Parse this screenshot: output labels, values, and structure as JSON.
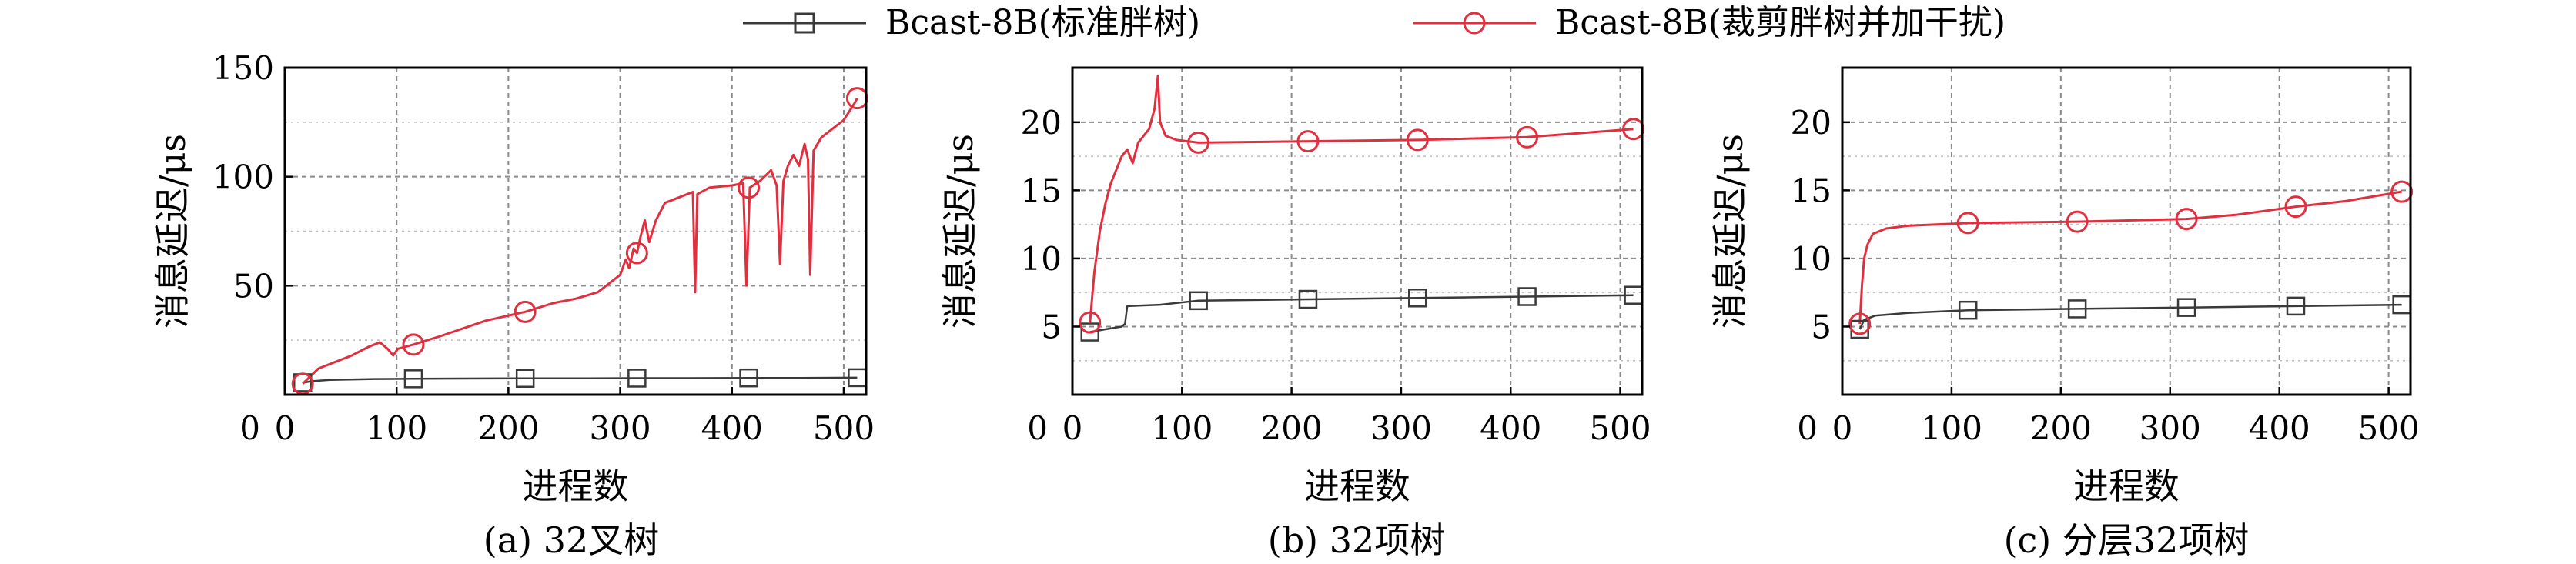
{
  "legend": [
    {
      "label": "Bcast-8B(标准胖树)",
      "color": "#3a3a3a",
      "marker": "square"
    },
    {
      "label": "Bcast-8B(裁剪胖树并加干扰)",
      "color": "#e0303f",
      "marker": "circle"
    }
  ],
  "chart_data": [
    {
      "type": "line",
      "caption": "(a)  32叉树",
      "xlabel": "进程数",
      "ylabel": "消息延迟/μs",
      "xlim": [
        0,
        520
      ],
      "ylim": [
        0,
        150
      ],
      "xticks": [
        0,
        100,
        200,
        300,
        400,
        500
      ],
      "yticks": [
        50,
        100,
        150
      ],
      "ytick_labels": [
        "50",
        "100",
        "150"
      ],
      "y_zero_label": "0",
      "grid": true,
      "series": [
        {
          "name": "Bcast-8B(标准胖树)",
          "color": "#3a3a3a",
          "marker": "square",
          "points": [
            [
              16,
              5.5
            ],
            [
              25,
              6.2
            ],
            [
              40,
              6.8
            ],
            [
              80,
              7.2
            ],
            [
              115,
              7.3
            ],
            [
              160,
              7.4
            ],
            [
              215,
              7.5
            ],
            [
              260,
              7.5
            ],
            [
              315,
              7.6
            ],
            [
              360,
              7.6
            ],
            [
              415,
              7.7
            ],
            [
              460,
              7.7
            ],
            [
              512,
              7.8
            ]
          ],
          "marker_x": [
            16,
            115,
            215,
            315,
            415,
            512
          ],
          "marker_y": [
            5.5,
            7.3,
            7.5,
            7.6,
            7.7,
            7.8
          ]
        },
        {
          "name": "Bcast-8B(裁剪胖树并加干扰)",
          "color": "#e0303f",
          "marker": "circle",
          "points": [
            [
              16,
              5
            ],
            [
              22,
              8
            ],
            [
              30,
              12
            ],
            [
              45,
              15
            ],
            [
              60,
              18
            ],
            [
              75,
              22
            ],
            [
              85,
              24
            ],
            [
              92,
              21
            ],
            [
              97,
              18
            ],
            [
              101,
              21
            ],
            [
              108,
              22
            ],
            [
              115,
              23
            ],
            [
              140,
              27
            ],
            [
              180,
              34
            ],
            [
              215,
              38
            ],
            [
              240,
              42
            ],
            [
              260,
              44
            ],
            [
              280,
              47
            ],
            [
              300,
              55
            ],
            [
              305,
              62
            ],
            [
              308,
              58
            ],
            [
              312,
              67
            ],
            [
              315,
              65
            ],
            [
              318,
              72
            ],
            [
              322,
              80
            ],
            [
              326,
              70
            ],
            [
              332,
              80
            ],
            [
              340,
              88
            ],
            [
              355,
              91
            ],
            [
              365,
              93
            ],
            [
              367,
              47
            ],
            [
              369,
              92
            ],
            [
              380,
              95
            ],
            [
              400,
              96
            ],
            [
              410,
              97
            ],
            [
              413,
              50
            ],
            [
              416,
              95
            ],
            [
              425,
              98
            ],
            [
              435,
              103
            ],
            [
              440,
              96
            ],
            [
              443,
              60
            ],
            [
              446,
              98
            ],
            [
              450,
              105
            ],
            [
              455,
              110
            ],
            [
              460,
              105
            ],
            [
              465,
              115
            ],
            [
              468,
              108
            ],
            [
              470,
              55
            ],
            [
              473,
              112
            ],
            [
              480,
              118
            ],
            [
              490,
              122
            ],
            [
              500,
              126
            ],
            [
              505,
              130
            ],
            [
              510,
              134
            ],
            [
              512,
              136
            ]
          ],
          "marker_x": [
            16,
            115,
            215,
            315,
            415,
            512
          ],
          "marker_y": [
            5,
            23,
            38,
            65,
            95,
            136
          ]
        }
      ]
    },
    {
      "type": "line",
      "caption": "(b)  32项树",
      "xlabel": "进程数",
      "ylabel": "消息延迟/μs",
      "xlim": [
        0,
        520
      ],
      "ylim": [
        0,
        24
      ],
      "xticks": [
        0,
        100,
        200,
        300,
        400,
        500
      ],
      "yticks": [
        5,
        10,
        15,
        20
      ],
      "ytick_labels": [
        "5",
        "10",
        "15",
        "20"
      ],
      "y_zero_label": "0",
      "grid": true,
      "series": [
        {
          "name": "Bcast-8B(标准胖树)",
          "color": "#3a3a3a",
          "marker": "square",
          "points": [
            [
              16,
              4.6
            ],
            [
              30,
              4.8
            ],
            [
              45,
              5.0
            ],
            [
              48,
              5.2
            ],
            [
              50,
              6.5
            ],
            [
              80,
              6.6
            ],
            [
              115,
              6.9
            ],
            [
              215,
              7.0
            ],
            [
              315,
              7.1
            ],
            [
              415,
              7.2
            ],
            [
              512,
              7.3
            ]
          ],
          "marker_x": [
            16,
            115,
            215,
            315,
            415,
            512
          ],
          "marker_y": [
            4.6,
            6.9,
            7.0,
            7.1,
            7.2,
            7.3
          ]
        },
        {
          "name": "Bcast-8B(裁剪胖树并加干扰)",
          "color": "#e0303f",
          "marker": "circle",
          "points": [
            [
              16,
              5.3
            ],
            [
              20,
              9
            ],
            [
              25,
              12
            ],
            [
              30,
              14
            ],
            [
              35,
              15.5
            ],
            [
              40,
              16.5
            ],
            [
              45,
              17.5
            ],
            [
              50,
              18
            ],
            [
              55,
              17
            ],
            [
              60,
              18.5
            ],
            [
              65,
              19
            ],
            [
              70,
              19.5
            ],
            [
              75,
              21
            ],
            [
              78,
              23.4
            ],
            [
              80,
              20
            ],
            [
              85,
              19
            ],
            [
              95,
              18.7
            ],
            [
              115,
              18.5
            ],
            [
              215,
              18.6
            ],
            [
              315,
              18.7
            ],
            [
              415,
              18.9
            ],
            [
              512,
              19.5
            ]
          ],
          "marker_x": [
            16,
            115,
            215,
            315,
            415,
            512
          ],
          "marker_y": [
            5.3,
            18.5,
            18.6,
            18.7,
            18.9,
            19.5
          ]
        }
      ]
    },
    {
      "type": "line",
      "caption": "(c)  分层32项树",
      "xlabel": "进程数",
      "ylabel": "消息延迟/μs",
      "xlim": [
        0,
        520
      ],
      "ylim": [
        0,
        24
      ],
      "xticks": [
        0,
        100,
        200,
        300,
        400,
        500
      ],
      "yticks": [
        5,
        10,
        15,
        20
      ],
      "ytick_labels": [
        "5",
        "10",
        "15",
        "20"
      ],
      "y_zero_label": "0",
      "grid": true,
      "series": [
        {
          "name": "Bcast-8B(标准胖树)",
          "color": "#3a3a3a",
          "marker": "square",
          "points": [
            [
              16,
              4.8
            ],
            [
              20,
              5.5
            ],
            [
              30,
              5.8
            ],
            [
              60,
              6.0
            ],
            [
              115,
              6.2
            ],
            [
              215,
              6.3
            ],
            [
              315,
              6.4
            ],
            [
              415,
              6.5
            ],
            [
              512,
              6.6
            ]
          ],
          "marker_x": [
            16,
            115,
            215,
            315,
            415,
            512
          ],
          "marker_y": [
            4.8,
            6.2,
            6.3,
            6.4,
            6.5,
            6.6
          ]
        },
        {
          "name": "Bcast-8B(裁剪胖树并加干扰)",
          "color": "#e0303f",
          "marker": "circle",
          "points": [
            [
              16,
              5.2
            ],
            [
              18,
              8
            ],
            [
              20,
              10
            ],
            [
              23,
              11
            ],
            [
              28,
              11.8
            ],
            [
              40,
              12.2
            ],
            [
              60,
              12.4
            ],
            [
              115,
              12.6
            ],
            [
              215,
              12.7
            ],
            [
              315,
              12.9
            ],
            [
              360,
              13.2
            ],
            [
              415,
              13.8
            ],
            [
              460,
              14.2
            ],
            [
              512,
              14.9
            ]
          ],
          "marker_x": [
            16,
            115,
            215,
            315,
            415,
            512
          ],
          "marker_y": [
            5.2,
            12.6,
            12.7,
            12.9,
            13.8,
            14.9
          ]
        }
      ]
    }
  ]
}
